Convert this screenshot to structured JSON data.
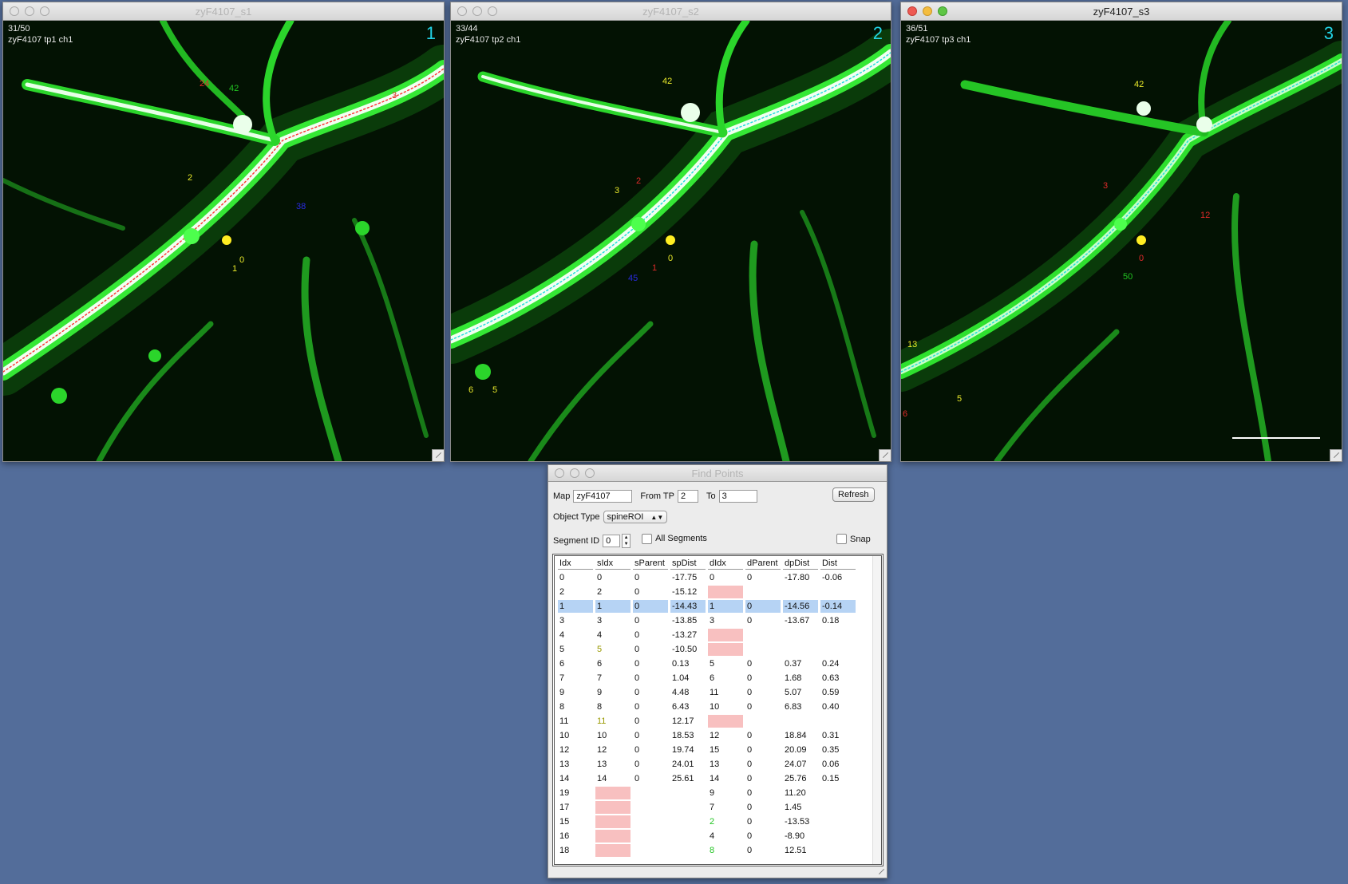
{
  "windows": [
    {
      "title": "zyF4107_s1",
      "slice": "31/50",
      "channel_label": "zyF4107 tp1 ch1",
      "number": "1",
      "active": false,
      "markers": [
        "42",
        "24",
        "2",
        "0",
        "1",
        "38",
        "3"
      ]
    },
    {
      "title": "zyF4107_s2",
      "slice": "33/44",
      "channel_label": "zyF4107 tp2 ch1",
      "number": "2",
      "active": false,
      "markers": [
        "42",
        "3",
        "2",
        "0",
        "1",
        "45",
        "6",
        "5"
      ]
    },
    {
      "title": "zyF4107_s3",
      "slice": "36/51",
      "channel_label": "zyF4107 tp3 ch1",
      "number": "3",
      "active": true,
      "markers": [
        "42",
        "3",
        "12",
        "0",
        "50",
        "13",
        "6",
        "5"
      ]
    }
  ],
  "find_points": {
    "title": "Find Points",
    "map_label": "Map",
    "map_value": "zyF4107",
    "from_tp_label": "From TP",
    "from_tp_value": "2",
    "to_label": "To",
    "to_value": "3",
    "refresh_label": "Refresh",
    "object_type_label": "Object Type",
    "object_type_value": "spineROI",
    "segment_id_label": "Segment ID",
    "segment_id_value": "0",
    "all_segments_label": "All Segments",
    "snap_label": "Snap",
    "columns": [
      "Idx",
      "sIdx",
      "sParent",
      "spDist",
      "dIdx",
      "dParent",
      "dpDist",
      "Dist"
    ],
    "rows": [
      {
        "c": [
          "0",
          "0",
          "0",
          "-17.75",
          "0",
          "0",
          "-17.80",
          "-0.06"
        ]
      },
      {
        "c": [
          "2",
          "2",
          "0",
          "-15.12",
          "",
          "",
          "",
          ""
        ],
        "pink": [
          4
        ]
      },
      {
        "c": [
          "1",
          "1",
          "0",
          "-14.43",
          "1",
          "0",
          "-14.56",
          "-0.14"
        ],
        "selected": true
      },
      {
        "c": [
          "3",
          "3",
          "0",
          "-13.85",
          "3",
          "0",
          "-13.67",
          "0.18"
        ]
      },
      {
        "c": [
          "4",
          "4",
          "0",
          "-13.27",
          "",
          "",
          "",
          ""
        ],
        "pink": [
          4
        ]
      },
      {
        "c": [
          "5",
          "5",
          "0",
          "-10.50",
          "",
          "",
          "",
          ""
        ],
        "pink": [
          4
        ],
        "yellow": [
          1
        ]
      },
      {
        "c": [
          "6",
          "6",
          "0",
          "0.13",
          "5",
          "0",
          "0.37",
          "0.24"
        ]
      },
      {
        "c": [
          "7",
          "7",
          "0",
          "1.04",
          "6",
          "0",
          "1.68",
          "0.63"
        ]
      },
      {
        "c": [
          "9",
          "9",
          "0",
          "4.48",
          "11",
          "0",
          "5.07",
          "0.59"
        ]
      },
      {
        "c": [
          "8",
          "8",
          "0",
          "6.43",
          "10",
          "0",
          "6.83",
          "0.40"
        ]
      },
      {
        "c": [
          "11",
          "11",
          "0",
          "12.17",
          "",
          "",
          "",
          ""
        ],
        "pink": [
          4
        ],
        "yellow": [
          1
        ]
      },
      {
        "c": [
          "10",
          "10",
          "0",
          "18.53",
          "12",
          "0",
          "18.84",
          "0.31"
        ]
      },
      {
        "c": [
          "12",
          "12",
          "0",
          "19.74",
          "15",
          "0",
          "20.09",
          "0.35"
        ]
      },
      {
        "c": [
          "13",
          "13",
          "0",
          "24.01",
          "13",
          "0",
          "24.07",
          "0.06"
        ]
      },
      {
        "c": [
          "14",
          "14",
          "0",
          "25.61",
          "14",
          "0",
          "25.76",
          "0.15"
        ]
      },
      {
        "c": [
          "19",
          "",
          "",
          "",
          "9",
          "0",
          "11.20",
          ""
        ],
        "pink": [
          1
        ]
      },
      {
        "c": [
          "17",
          "",
          "",
          "",
          "7",
          "0",
          "1.45",
          ""
        ],
        "pink": [
          1
        ]
      },
      {
        "c": [
          "15",
          "",
          "",
          "",
          "2",
          "0",
          "-13.53",
          ""
        ],
        "pink": [
          1
        ],
        "green": [
          4
        ]
      },
      {
        "c": [
          "16",
          "",
          "",
          "",
          "4",
          "0",
          "-8.90",
          ""
        ],
        "pink": [
          1
        ]
      },
      {
        "c": [
          "18",
          "",
          "",
          "",
          "8",
          "0",
          "12.51",
          ""
        ],
        "pink": [
          1
        ],
        "green": [
          4
        ]
      }
    ]
  }
}
